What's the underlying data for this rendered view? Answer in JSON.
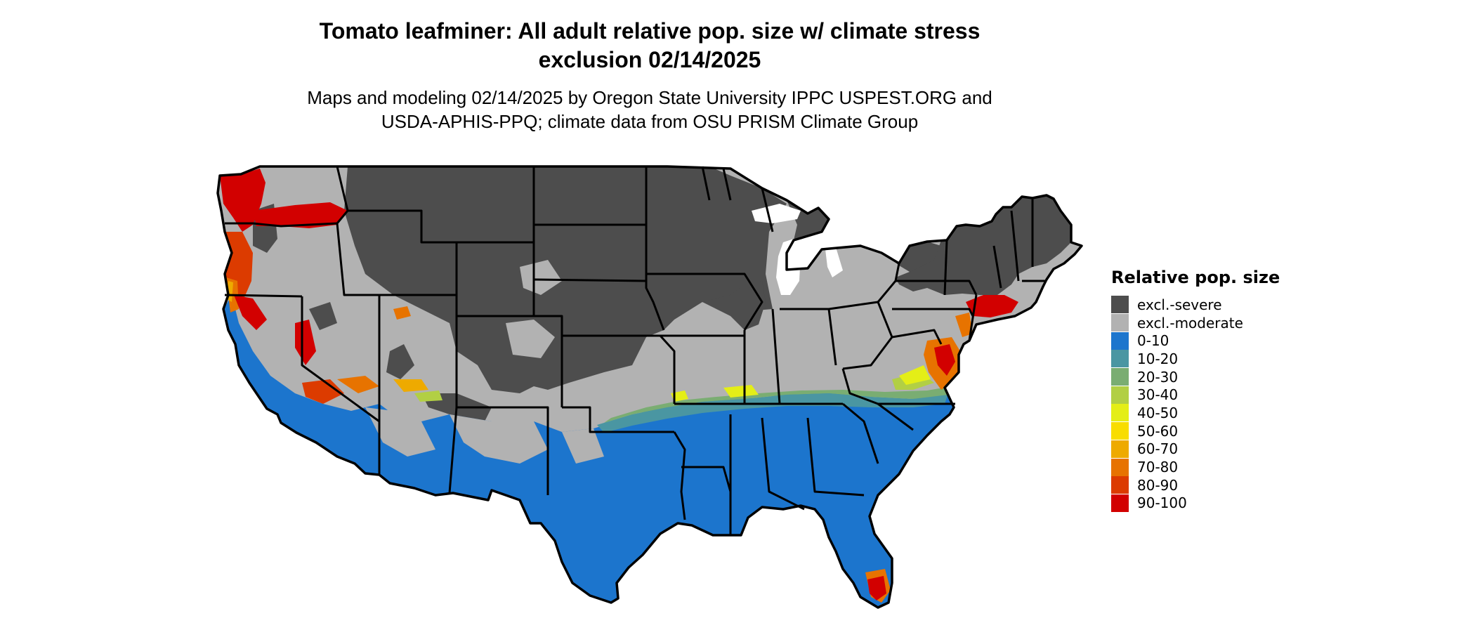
{
  "title": {
    "line1": "Tomato leafminer: All adult relative pop. size w/ climate stress",
    "line2": "exclusion 02/14/2025"
  },
  "subtitle": {
    "line1": "Maps and modeling 02/14/2025 by Oregon State University IPPC USPEST.ORG and",
    "line2": "USDA-APHIS-PPQ; climate data from OSU PRISM Climate Group"
  },
  "legend": {
    "title": "Relative pop. size",
    "items": [
      {
        "label": "excl.-severe",
        "color": "#4d4d4d"
      },
      {
        "label": "excl.-moderate",
        "color": "#b2b2b2"
      },
      {
        "label": "0-10",
        "color": "#1c75cd"
      },
      {
        "label": "10-20",
        "color": "#4a96a2"
      },
      {
        "label": "20-30",
        "color": "#7aad72"
      },
      {
        "label": "30-40",
        "color": "#b2cf44"
      },
      {
        "label": "40-50",
        "color": "#e4ee17"
      },
      {
        "label": "50-60",
        "color": "#f8dd00"
      },
      {
        "label": "60-70",
        "color": "#eeaa00"
      },
      {
        "label": "70-80",
        "color": "#e77300"
      },
      {
        "label": "80-90",
        "color": "#dc3b00"
      },
      {
        "label": "90-100",
        "color": "#d20000"
      }
    ]
  }
}
